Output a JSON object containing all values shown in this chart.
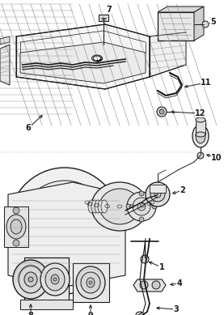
{
  "bg_color": "#ffffff",
  "fig_width": 2.77,
  "fig_height": 3.89,
  "dpi": 100,
  "line_color": "#1a1a1a",
  "gray_fill": "#d8d8d8",
  "light_fill": "#eeeeee"
}
